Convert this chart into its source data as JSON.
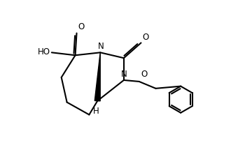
{
  "background_color": "#ffffff",
  "line_color": "#000000",
  "line_width": 1.5,
  "figsize": [
    3.3,
    2.18
  ],
  "dpi": 100,
  "xlim": [
    0.0,
    6.5
  ],
  "ylim": [
    -1.5,
    4.0
  ]
}
